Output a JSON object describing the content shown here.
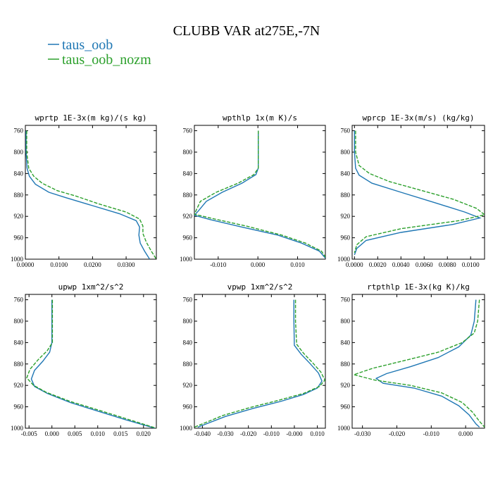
{
  "figure": {
    "title": "CLUBB VAR at275E,-7N"
  },
  "colors": {
    "series1": "#1f77b4",
    "series2": "#2ca02c"
  },
  "legend": {
    "entries": [
      {
        "name": "taus_oob",
        "color": "#1f77b4",
        "style": "solid"
      },
      {
        "name": "taus_oob_nozm",
        "color": "#2ca02c",
        "style": "dashed"
      }
    ]
  },
  "chart_data": [
    {
      "type": "line",
      "title": "wprtp  1E-3x(m kg)/(s kg)",
      "xlim": [
        0,
        0.039
      ],
      "ylim": [
        1000,
        750
      ],
      "y_reversed": true,
      "xticks": [
        0,
        0.01,
        0.02,
        0.03
      ],
      "xtick_labels": [
        "0.0000",
        "0.0100",
        "0.0200",
        "0.0300"
      ],
      "yticks": [
        760,
        800,
        840,
        880,
        920,
        960,
        1000
      ],
      "ytick_labels": [
        "760",
        "800",
        "840",
        "880",
        "920",
        "960",
        "1000"
      ],
      "series": [
        {
          "name": "taus_oob",
          "points": [
            [
              0.0002,
              760
            ],
            [
              0.0002,
              800
            ],
            [
              0.0005,
              830
            ],
            [
              0.0012,
              845
            ],
            [
              0.003,
              860
            ],
            [
              0.007,
              875
            ],
            [
              0.012,
              885
            ],
            [
              0.02,
              900
            ],
            [
              0.028,
              915
            ],
            [
              0.033,
              928
            ],
            [
              0.034,
              940
            ],
            [
              0.0338,
              955
            ],
            [
              0.0342,
              970
            ],
            [
              0.0355,
              985
            ],
            [
              0.037,
              1000
            ]
          ]
        },
        {
          "name": "taus_oob_nozm",
          "points": [
            [
              0.0004,
              760
            ],
            [
              0.0004,
              800
            ],
            [
              0.001,
              830
            ],
            [
              0.0025,
              845
            ],
            [
              0.005,
              858
            ],
            [
              0.0095,
              872
            ],
            [
              0.015,
              882
            ],
            [
              0.022,
              897
            ],
            [
              0.03,
              912
            ],
            [
              0.034,
              925
            ],
            [
              0.035,
              938
            ],
            [
              0.035,
              952
            ],
            [
              0.036,
              968
            ],
            [
              0.0375,
              985
            ],
            [
              0.039,
              1000
            ]
          ]
        }
      ]
    },
    {
      "type": "line",
      "title": "wpthlp  1x(m K)/s",
      "xlim": [
        -0.016,
        0.017
      ],
      "ylim": [
        1000,
        750
      ],
      "y_reversed": true,
      "xticks": [
        -0.01,
        0,
        0.01
      ],
      "xtick_labels": [
        "-0.010",
        "0.000",
        "0.010"
      ],
      "yticks": [
        760,
        800,
        840,
        880,
        920,
        960,
        1000
      ],
      "ytick_labels": [
        "760",
        "800",
        "840",
        "880",
        "920",
        "960",
        "1000"
      ],
      "series": [
        {
          "name": "taus_oob",
          "points": [
            [
              0.0001,
              760
            ],
            [
              0.0001,
              800
            ],
            [
              0.0001,
              830
            ],
            [
              -0.0005,
              842
            ],
            [
              -0.004,
              858
            ],
            [
              -0.009,
              875
            ],
            [
              -0.013,
              892
            ],
            [
              -0.015,
              910
            ],
            [
              -0.016,
              918
            ],
            [
              -0.012,
              926
            ],
            [
              -0.004,
              940
            ],
            [
              0.005,
              955
            ],
            [
              0.011,
              970
            ],
            [
              0.0155,
              985
            ],
            [
              0.017,
              998
            ]
          ]
        },
        {
          "name": "taus_oob_nozm",
          "points": [
            [
              0.0001,
              760
            ],
            [
              0.0001,
              800
            ],
            [
              0.0001,
              830
            ],
            [
              -0.001,
              842
            ],
            [
              -0.005,
              858
            ],
            [
              -0.0105,
              875
            ],
            [
              -0.0145,
              892
            ],
            [
              -0.0155,
              908
            ],
            [
              -0.016,
              916
            ],
            [
              -0.0115,
              924
            ],
            [
              -0.003,
              938
            ],
            [
              0.006,
              955
            ],
            [
              0.012,
              970
            ],
            [
              0.016,
              985
            ],
            [
              0.0172,
              998
            ]
          ]
        }
      ]
    },
    {
      "type": "line",
      "title": "wprcp  1E-3x(m/s) (kg/kg)",
      "xlim": [
        -0.0002,
        0.0112
      ],
      "ylim": [
        1000,
        750
      ],
      "y_reversed": true,
      "xticks": [
        0,
        0.002,
        0.004,
        0.006,
        0.008,
        0.01
      ],
      "xtick_labels": [
        "0.0000",
        "0.0020",
        "0.0040",
        "0.0060",
        "0.0080",
        "0.0100"
      ],
      "yticks": [
        760,
        800,
        840,
        880,
        920,
        960,
        1000
      ],
      "ytick_labels": [
        "760",
        "800",
        "840",
        "880",
        "920",
        "960",
        "1000"
      ],
      "series": [
        {
          "name": "taus_oob",
          "points": [
            [
              0,
              760
            ],
            [
              0,
              800
            ],
            [
              0.0001,
              830
            ],
            [
              0.0004,
              843
            ],
            [
              0.0015,
              858
            ],
            [
              0.004,
              875
            ],
            [
              0.007,
              895
            ],
            [
              0.0095,
              912
            ],
            [
              0.0108,
              923
            ],
            [
              0.0085,
              935
            ],
            [
              0.004,
              950
            ],
            [
              0.001,
              965
            ],
            [
              0.0002,
              980
            ],
            [
              0,
              992
            ]
          ]
        },
        {
          "name": "taus_oob_nozm",
          "points": [
            [
              0.0001,
              760
            ],
            [
              0.0001,
              800
            ],
            [
              0.0004,
              825
            ],
            [
              0.0013,
              840
            ],
            [
              0.003,
              855
            ],
            [
              0.0055,
              870
            ],
            [
              0.0085,
              888
            ],
            [
              0.0105,
              905
            ],
            [
              0.0112,
              917
            ],
            [
              0.009,
              928
            ],
            [
              0.004,
              943
            ],
            [
              0.001,
              958
            ],
            [
              0.0002,
              973
            ],
            [
              0,
              988
            ]
          ]
        }
      ]
    },
    {
      "type": "line",
      "title": "upwp  1xm^2/s^2",
      "xlim": [
        -0.0058,
        0.0228
      ],
      "ylim": [
        1000,
        750
      ],
      "y_reversed": true,
      "xticks": [
        -0.005,
        0,
        0.005,
        0.01,
        0.015,
        0.02
      ],
      "xtick_labels": [
        "-0.005",
        "0.000",
        "0.005",
        "0.010",
        "0.015",
        "0.020"
      ],
      "yticks": [
        760,
        800,
        840,
        880,
        920,
        960,
        1000
      ],
      "ytick_labels": [
        "760",
        "800",
        "840",
        "880",
        "920",
        "960",
        "1000"
      ],
      "series": [
        {
          "name": "taus_oob",
          "points": [
            [
              0,
              760
            ],
            [
              0,
              800
            ],
            [
              0,
              840
            ],
            [
              -0.0005,
              858
            ],
            [
              -0.002,
              875
            ],
            [
              -0.0038,
              892
            ],
            [
              -0.0045,
              908
            ],
            [
              -0.0038,
              922
            ],
            [
              -0.001,
              935
            ],
            [
              0.004,
              952
            ],
            [
              0.01,
              968
            ],
            [
              0.016,
              984
            ],
            [
              0.0225,
              1000
            ]
          ]
        },
        {
          "name": "taus_oob_nozm",
          "points": [
            [
              0.0001,
              760
            ],
            [
              0.0001,
              800
            ],
            [
              0.0001,
              840
            ],
            [
              -0.001,
              855
            ],
            [
              -0.003,
              872
            ],
            [
              -0.0048,
              890
            ],
            [
              -0.0055,
              906
            ],
            [
              -0.004,
              920
            ],
            [
              -0.0012,
              933
            ],
            [
              0.004,
              950
            ],
            [
              0.0105,
              967
            ],
            [
              0.0165,
              983
            ],
            [
              0.0228,
              1000
            ]
          ]
        }
      ]
    },
    {
      "type": "line",
      "title": "vpwp  1xm^2/s^2",
      "xlim": [
        -0.0435,
        0.0135
      ],
      "ylim": [
        1000,
        750
      ],
      "y_reversed": true,
      "xticks": [
        -0.04,
        -0.03,
        -0.02,
        -0.01,
        0,
        0.01
      ],
      "xtick_labels": [
        "-0.040",
        "-0.030",
        "-0.020",
        "-0.010",
        "-0.000",
        "0.010"
      ],
      "yticks": [
        760,
        800,
        840,
        880,
        920,
        960,
        1000
      ],
      "ytick_labels": [
        "760",
        "800",
        "840",
        "880",
        "920",
        "960",
        "1000"
      ],
      "series": [
        {
          "name": "taus_oob",
          "points": [
            [
              -0.0002,
              760
            ],
            [
              -0.0002,
              800
            ],
            [
              0,
              845
            ],
            [
              0.003,
              862
            ],
            [
              0.007,
              880
            ],
            [
              0.0105,
              897
            ],
            [
              0.012,
              912
            ],
            [
              0.01,
              925
            ],
            [
              0.004,
              937
            ],
            [
              -0.006,
              950
            ],
            [
              -0.018,
              963
            ],
            [
              -0.03,
              978
            ],
            [
              -0.042,
              998
            ]
          ]
        },
        {
          "name": "taus_oob_nozm",
          "points": [
            [
              0.0005,
              760
            ],
            [
              0.0005,
              800
            ],
            [
              0.001,
              843
            ],
            [
              0.004,
              860
            ],
            [
              0.008,
              878
            ],
            [
              0.0115,
              895
            ],
            [
              0.0133,
              910
            ],
            [
              0.011,
              922
            ],
            [
              0.004,
              935
            ],
            [
              -0.007,
              948
            ],
            [
              -0.019,
              961
            ],
            [
              -0.031,
              976
            ],
            [
              -0.0435,
              998
            ]
          ]
        }
      ]
    },
    {
      "type": "line",
      "title": "rtpthlp  1E-3x(kg K)/kg",
      "xlim": [
        -0.033,
        0.0055
      ],
      "ylim": [
        1000,
        750
      ],
      "y_reversed": true,
      "xticks": [
        -0.03,
        -0.02,
        -0.01,
        0
      ],
      "xtick_labels": [
        "-0.030",
        "-0.020",
        "-0.010",
        "0.000"
      ],
      "yticks": [
        760,
        800,
        840,
        880,
        920,
        960,
        1000
      ],
      "ytick_labels": [
        "760",
        "800",
        "840",
        "880",
        "920",
        "960",
        "1000"
      ],
      "series": [
        {
          "name": "taus_oob",
          "points": [
            [
              0.003,
              760
            ],
            [
              0.0025,
              800
            ],
            [
              0.0015,
              826
            ],
            [
              -0.002,
              848
            ],
            [
              -0.008,
              868
            ],
            [
              -0.016,
              885
            ],
            [
              -0.023,
              898
            ],
            [
              -0.026,
              907
            ],
            [
              -0.024,
              916
            ],
            [
              -0.015,
              925
            ],
            [
              -0.007,
              940
            ],
            [
              -0.002,
              958
            ],
            [
              0.001,
              975
            ],
            [
              0.003,
              992
            ],
            [
              0.004,
              998
            ]
          ]
        },
        {
          "name": "taus_oob_nozm",
          "points": [
            [
              0.004,
              760
            ],
            [
              0.0035,
              800
            ],
            [
              0.0025,
              822
            ],
            [
              -0.001,
              840
            ],
            [
              -0.008,
              858
            ],
            [
              -0.018,
              874
            ],
            [
              -0.027,
              888
            ],
            [
              -0.0325,
              900
            ],
            [
              -0.0265,
              910
            ],
            [
              -0.016,
              920
            ],
            [
              -0.007,
              934
            ],
            [
              -0.001,
              952
            ],
            [
              0.002,
              970
            ],
            [
              0.004,
              987
            ],
            [
              0.0055,
              998
            ]
          ]
        }
      ]
    }
  ]
}
